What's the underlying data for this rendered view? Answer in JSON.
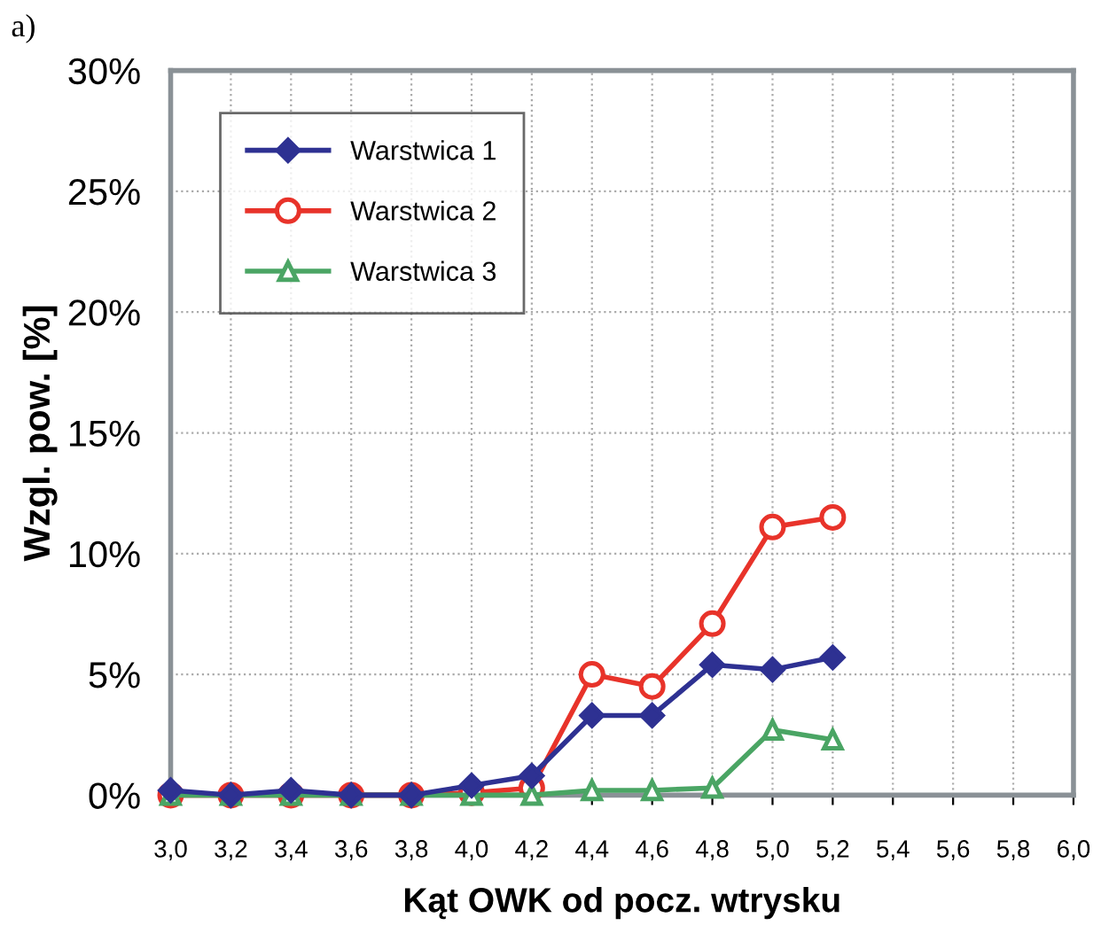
{
  "chart_data": {
    "type": "line",
    "xlabel": "Kąt OWK od pocz. wtrysku",
    "ylabel": "Wzgl. pow. [%]",
    "annotations": [
      "a)"
    ],
    "x": [
      3.0,
      3.2,
      3.4,
      3.6,
      3.8,
      4.0,
      4.2,
      4.4,
      4.6,
      4.8,
      5.0,
      5.2
    ],
    "series": [
      {
        "name": "Warstwica 1",
        "color": "#2e3192",
        "marker": "diamond",
        "values": [
          0.2,
          0,
          0.2,
          0,
          0,
          0.4,
          0.8,
          3.3,
          3.3,
          5.4,
          5.2,
          5.7
        ]
      },
      {
        "name": "Warstwica 2",
        "color": "#e8332a",
        "marker": "circle",
        "values": [
          0,
          0,
          0,
          0,
          0,
          0.1,
          0.3,
          5.0,
          4.5,
          7.1,
          11.1,
          11.5
        ]
      },
      {
        "name": "Warstwica 3",
        "color": "#4aa564",
        "marker": "triangle",
        "values": [
          0,
          0,
          0,
          0,
          0,
          0,
          0,
          0.2,
          0.2,
          0.3,
          2.7,
          2.3
        ]
      }
    ],
    "xlim": [
      3.0,
      6.0
    ],
    "xticks": [
      {
        "value": 3.0,
        "label": "3,0"
      },
      {
        "value": 3.2,
        "label": "3,2"
      },
      {
        "value": 3.4,
        "label": "3,4"
      },
      {
        "value": 3.6,
        "label": "3,6"
      },
      {
        "value": 3.8,
        "label": "3,8"
      },
      {
        "value": 4.0,
        "label": "4,0"
      },
      {
        "value": 4.2,
        "label": "4,2"
      },
      {
        "value": 4.4,
        "label": "4,4"
      },
      {
        "value": 4.6,
        "label": "4,6"
      },
      {
        "value": 4.8,
        "label": "4,8"
      },
      {
        "value": 5.0,
        "label": "5,0"
      },
      {
        "value": 5.2,
        "label": "5,2"
      },
      {
        "value": 5.4,
        "label": "5,4"
      },
      {
        "value": 5.6,
        "label": "5,6"
      },
      {
        "value": 5.8,
        "label": "5,8"
      },
      {
        "value": 6.0,
        "label": "6,0"
      }
    ],
    "ylim": [
      0,
      30
    ],
    "yticks": [
      {
        "value": 0,
        "label": "0%"
      },
      {
        "value": 5,
        "label": "5%"
      },
      {
        "value": 10,
        "label": "10%"
      },
      {
        "value": 15,
        "label": "15%"
      },
      {
        "value": 20,
        "label": "20%"
      },
      {
        "value": 25,
        "label": "25%"
      },
      {
        "value": 30,
        "label": "30%"
      }
    ],
    "grid": true,
    "legend": "top left",
    "line_style": "solid"
  }
}
